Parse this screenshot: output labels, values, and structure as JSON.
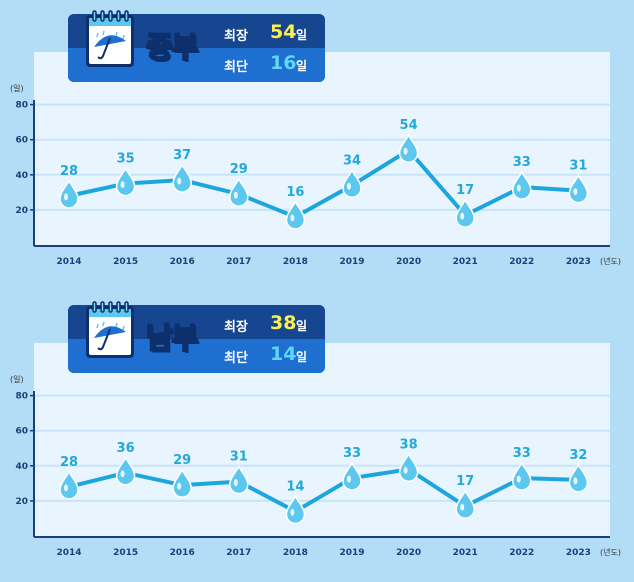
{
  "colors": {
    "line": "#1da6dd",
    "drop": "#5cc8f0",
    "label": "#24a8d8",
    "axis": "#1b3f7a",
    "gridline": "#c8e4f7",
    "max_value": "#fff04d",
    "min_value": "#5fd6f7"
  },
  "icons": {
    "badge_icon": "calendar-umbrella-icon",
    "marker_icon": "water-drop-icon"
  },
  "units": {
    "y": "(일)",
    "x": "(년도)"
  },
  "panels": [
    {
      "region": "중부",
      "max_label": "최장",
      "max_value": "54",
      "max_unit": "일",
      "min_label": "최단",
      "min_value": "16",
      "min_unit": "일"
    },
    {
      "region": "남부",
      "max_label": "최장",
      "max_value": "38",
      "max_unit": "일",
      "min_label": "최단",
      "min_value": "14",
      "min_unit": "일"
    }
  ],
  "chart_data": [
    {
      "type": "line",
      "title": "",
      "xlabel": "(년도)",
      "ylabel": "(일)",
      "categories": [
        "2014",
        "2015",
        "2016",
        "2017",
        "2018",
        "2019",
        "2020",
        "2021",
        "2022",
        "2023"
      ],
      "series": [
        {
          "values": [
            28,
            35,
            37,
            29,
            16,
            34,
            54,
            17,
            33,
            31
          ]
        }
      ],
      "yticks": [
        20,
        40,
        60,
        80
      ],
      "ylim": [
        0,
        80
      ],
      "grid": true,
      "legend": "none"
    },
    {
      "type": "line",
      "title": "",
      "xlabel": "(년도)",
      "ylabel": "(일)",
      "categories": [
        "2014",
        "2015",
        "2016",
        "2017",
        "2018",
        "2019",
        "2020",
        "2021",
        "2022",
        "2023"
      ],
      "series": [
        {
          "values": [
            28,
            36,
            29,
            31,
            14,
            33,
            38,
            17,
            33,
            32
          ]
        }
      ],
      "yticks": [
        20,
        40,
        60,
        80
      ],
      "ylim": [
        0,
        80
      ],
      "grid": true,
      "legend": "none"
    }
  ]
}
